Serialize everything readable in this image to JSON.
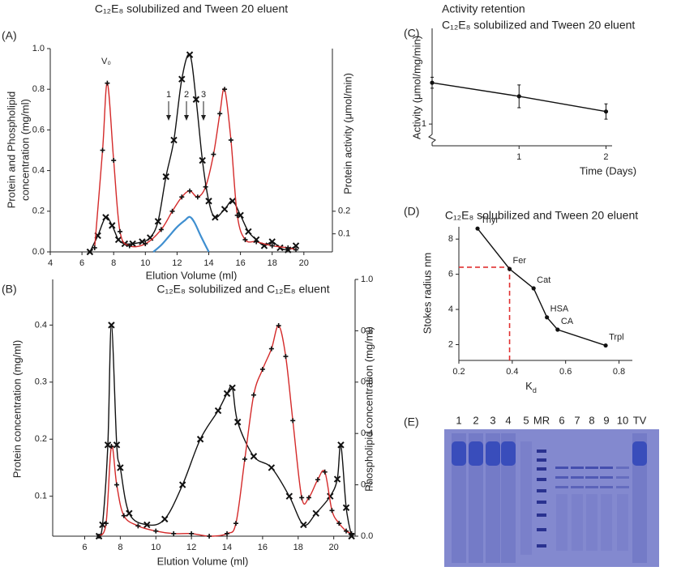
{
  "chart_data": [
    {
      "type": "line",
      "panel_label": "(A)",
      "title": "C₁₂E₈ solubilized and Tween 20 eluent",
      "x_label": "Elution Volume (ml)",
      "y_label": [
        "Protein and Phospholipid",
        "concentration (mg/ml)"
      ],
      "y2_label": "Protein activity  (μmol/min)",
      "xlim": [
        4,
        21.8
      ],
      "xticks": [
        4,
        6,
        8,
        10,
        12,
        14,
        16,
        18,
        20
      ],
      "ylim": [
        0,
        1.0
      ],
      "yticks": [
        {
          "value": 0,
          "label": "0.0"
        },
        0.2,
        0.4,
        0.6,
        0.8,
        {
          "value": 1,
          "label": "1.0"
        }
      ],
      "y2lim": [
        0.02,
        0.92
      ],
      "y2ticks": [
        0.1,
        0.2
      ],
      "annotations": [
        "V₀",
        "1",
        "2",
        "3"
      ],
      "series": [
        {
          "color": "#111111",
          "marker": "x",
          "smooth": true,
          "x": [
            6.5,
            7.0,
            7.5,
            7.9,
            8.3,
            8.7,
            9.2,
            9.8,
            10.3,
            10.8,
            11.3,
            11.8,
            12.3,
            12.8,
            13.2,
            13.6,
            14.0,
            14.4,
            15.0,
            15.5,
            16.0,
            16.5,
            17.0,
            17.5,
            18.0,
            18.5,
            19.0,
            19.5
          ],
          "values": [
            0.0,
            0.08,
            0.17,
            0.13,
            0.06,
            0.04,
            0.04,
            0.05,
            0.07,
            0.15,
            0.37,
            0.55,
            0.85,
            0.97,
            0.75,
            0.45,
            0.25,
            0.17,
            0.21,
            0.25,
            0.18,
            0.1,
            0.06,
            0.03,
            0.05,
            0.02,
            0.01,
            0.03
          ]
        },
        {
          "color": "#d42a2a",
          "marker": "+",
          "smooth": true,
          "x": [
            6.8,
            7.3,
            7.6,
            8.0,
            8.4,
            9.0,
            10.0,
            11.0,
            11.7,
            12.3,
            12.8,
            13.3,
            13.8,
            14.3,
            14.7,
            15.0,
            15.4,
            15.8,
            16.3,
            17.0,
            18.0,
            19.0,
            19.5
          ],
          "values": [
            0.02,
            0.5,
            0.83,
            0.45,
            0.1,
            0.03,
            0.04,
            0.11,
            0.2,
            0.27,
            0.3,
            0.27,
            0.32,
            0.48,
            0.68,
            0.8,
            0.55,
            0.18,
            0.06,
            0.05,
            0.03,
            0.02,
            0.01
          ]
        },
        {
          "color": "#3f8fd0",
          "marker": "none",
          "smooth": true,
          "axis": "y2",
          "x": [
            10.5,
            11.0,
            11.5,
            12.0,
            12.5,
            12.8,
            13.1,
            13.5,
            14.0
          ],
          "values": [
            0.02,
            0.05,
            0.09,
            0.13,
            0.16,
            0.175,
            0.15,
            0.09,
            0.02
          ]
        }
      ]
    },
    {
      "type": "line",
      "panel_label": "(B)",
      "title": "C₁₂E₈ solubilized and C₁₂E₈ eluent",
      "x_label": "Elution Volume (ml)",
      "y_label": [
        "Protein concentration (mg/ml)"
      ],
      "y2_label": "Phospholipid concentration (mg/ml)",
      "xlim": [
        4.2,
        21.2
      ],
      "xticks": [
        6,
        8,
        10,
        12,
        14,
        16,
        18,
        20
      ],
      "ylim": [
        0.03,
        0.48
      ],
      "yticks": [
        0.1,
        0.2,
        0.3,
        0.4
      ],
      "y2lim": [
        0,
        1.0
      ],
      "y2ticks": [
        {
          "value": 0,
          "label": "0.0"
        },
        0.2,
        0.4,
        0.6,
        0.8,
        {
          "value": 1,
          "label": "1.0"
        }
      ],
      "series": [
        {
          "color": "#111111",
          "marker": "x",
          "smooth": true,
          "x": [
            6.8,
            7.0,
            7.3,
            7.5,
            7.8,
            8.0,
            8.5,
            9.5,
            10.5,
            11.5,
            12.5,
            13.5,
            14.0,
            14.3,
            14.6,
            15.5,
            16.5,
            17.5,
            18.3,
            19.0,
            19.8,
            20.2,
            20.4,
            20.7,
            21.0
          ],
          "values": [
            0.03,
            0.05,
            0.19,
            0.4,
            0.19,
            0.15,
            0.07,
            0.05,
            0.06,
            0.12,
            0.2,
            0.25,
            0.28,
            0.29,
            0.23,
            0.17,
            0.15,
            0.1,
            0.05,
            0.07,
            0.1,
            0.13,
            0.19,
            0.08,
            0.03
          ]
        },
        {
          "color": "#d42a2a",
          "marker": "+",
          "smooth": true,
          "axis": "y2",
          "x": [
            6.8,
            7.2,
            7.5,
            7.8,
            8.2,
            9.0,
            10.0,
            11.0,
            12.0,
            13.0,
            14.0,
            14.5,
            15.0,
            15.5,
            16.0,
            16.5,
            16.9,
            17.3,
            17.7,
            18.2,
            18.6,
            19.1,
            19.5,
            19.9,
            20.3,
            20.7,
            21.0
          ],
          "values": [
            0.0,
            0.05,
            0.35,
            0.2,
            0.08,
            0.04,
            0.02,
            0.01,
            0.01,
            0.0,
            0.01,
            0.05,
            0.3,
            0.55,
            0.65,
            0.73,
            0.82,
            0.7,
            0.45,
            0.15,
            0.15,
            0.22,
            0.25,
            0.1,
            0.05,
            0.02,
            0.01
          ]
        }
      ]
    },
    {
      "type": "line",
      "panel_label": "(C)",
      "title": [
        "Activity retention",
        "C₁₂E₈ solubilized and Tween 20 eluent"
      ],
      "x_label": "Time (Days)",
      "y_label": [
        "Activity (μmol/mg/min)"
      ],
      "xlim": [
        0,
        2.07
      ],
      "xticks": [
        1,
        2
      ],
      "ylim": [
        0.6,
        2.76
      ],
      "yticks": [
        1
      ],
      "broken_axis": true,
      "series": [
        {
          "color": "#111111",
          "marker": "dot",
          "smooth": false,
          "x": [
            0,
            1,
            2
          ],
          "values": [
            1.76,
            1.51,
            1.23
          ],
          "errors": [
            0.1,
            0.21,
            0.14
          ]
        }
      ]
    },
    {
      "type": "line",
      "panel_label": "(D)",
      "title": "C₁₂E₈ solubilized and Tween 20 eluent",
      "x_label": [
        "K",
        "d"
      ],
      "y_label": [
        "Stokes radius nm"
      ],
      "xlim": [
        0.2,
        0.85
      ],
      "xticks": [
        0.2,
        0.4,
        0.6,
        0.8
      ],
      "ylim": [
        1.1,
        8.7
      ],
      "yticks": [
        2,
        4,
        6,
        8
      ],
      "reference": {
        "x": 0.39,
        "y": 6.4,
        "color": "#e03030"
      },
      "series": [
        {
          "color": "#111111",
          "marker": "dot",
          "smooth": false,
          "x": [
            0.27,
            0.39,
            0.48,
            0.53,
            0.57,
            0.75
          ],
          "values": [
            8.6,
            6.3,
            5.2,
            3.55,
            2.85,
            1.95
          ],
          "point_labels": [
            "Thyr",
            "Fer",
            "Cat",
            "HSA",
            "CA",
            "Trpl"
          ]
        }
      ]
    }
  ],
  "gel": {
    "panel_label": "(E)",
    "lanes": [
      "1",
      "2",
      "3",
      "4",
      "5",
      "MR",
      "6",
      "7",
      "8",
      "9",
      "10",
      "TV"
    ]
  }
}
